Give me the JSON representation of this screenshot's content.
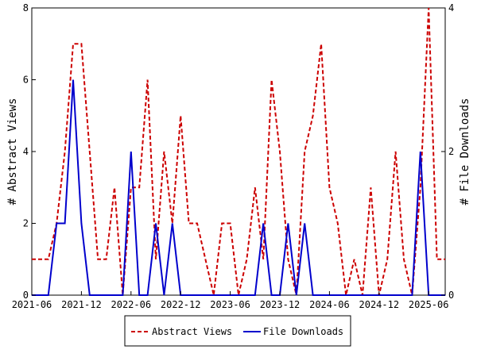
{
  "chart_data": {
    "type": "line",
    "x_tick_labels": [
      "2021-06",
      "2021-12",
      "2022-06",
      "2022-12",
      "2023-06",
      "2023-12",
      "2024-06",
      "2024-12",
      "2025-06"
    ],
    "x_range": [
      "2021-06",
      "2025-08"
    ],
    "ylabel_left": "# Abstract Views",
    "ylabel_right": "# File Downloads",
    "ylim_left": [
      0,
      8
    ],
    "ylim_right": [
      0,
      4
    ],
    "yticks_left": [
      "0",
      "2",
      "4",
      "6",
      "8"
    ],
    "yticks_right": [
      "0",
      "2",
      "4"
    ],
    "grid": false,
    "legend_position": "bottom",
    "series": [
      {
        "name": "Abstract Views",
        "axis": "left",
        "color": "#cc0000",
        "style": "dashed",
        "x": [
          "2021-06",
          "2021-07",
          "2021-08",
          "2021-09",
          "2021-10",
          "2021-11",
          "2021-12",
          "2022-01",
          "2022-02",
          "2022-03",
          "2022-04",
          "2022-05",
          "2022-06",
          "2022-07",
          "2022-08",
          "2022-09",
          "2022-10",
          "2022-11",
          "2022-12",
          "2023-01",
          "2023-02",
          "2023-03",
          "2023-04",
          "2023-05",
          "2023-06",
          "2023-07",
          "2023-08",
          "2023-09",
          "2023-10",
          "2023-11",
          "2023-12",
          "2024-01",
          "2024-02",
          "2024-03",
          "2024-04",
          "2024-05",
          "2024-06",
          "2024-07",
          "2024-08",
          "2024-09",
          "2024-10",
          "2024-11",
          "2024-12",
          "2025-01",
          "2025-02",
          "2025-03",
          "2025-04",
          "2025-05",
          "2025-06",
          "2025-07",
          "2025-08"
        ],
        "values": [
          1,
          1,
          1,
          2,
          4,
          7,
          7,
          4,
          1,
          1,
          3,
          0,
          3,
          3,
          6,
          1,
          4,
          2,
          5,
          2,
          2,
          1,
          0,
          2,
          2,
          0,
          1,
          3,
          1,
          6,
          4,
          1,
          0,
          4,
          5,
          7,
          3,
          2,
          0,
          1,
          0,
          3,
          0,
          1,
          4,
          1,
          0,
          3,
          8,
          1,
          1
        ]
      },
      {
        "name": "File Downloads",
        "axis": "right",
        "color": "#0000cc",
        "style": "solid",
        "x": [
          "2021-06",
          "2021-07",
          "2021-08",
          "2021-09",
          "2021-10",
          "2021-11",
          "2021-12",
          "2022-01",
          "2022-02",
          "2022-03",
          "2022-04",
          "2022-05",
          "2022-06",
          "2022-07",
          "2022-08",
          "2022-09",
          "2022-10",
          "2022-11",
          "2022-12",
          "2023-01",
          "2023-02",
          "2023-03",
          "2023-04",
          "2023-05",
          "2023-06",
          "2023-07",
          "2023-08",
          "2023-09",
          "2023-10",
          "2023-11",
          "2023-12",
          "2024-01",
          "2024-02",
          "2024-03",
          "2024-04",
          "2024-05",
          "2024-06",
          "2024-07",
          "2024-08",
          "2024-09",
          "2024-10",
          "2024-11",
          "2024-12",
          "2025-01",
          "2025-02",
          "2025-03",
          "2025-04",
          "2025-05",
          "2025-06",
          "2025-07",
          "2025-08"
        ],
        "values": [
          0,
          0,
          0,
          1,
          1,
          3,
          1,
          0,
          0,
          0,
          0,
          0,
          2,
          0,
          0,
          1,
          0,
          1,
          0,
          0,
          0,
          0,
          0,
          0,
          0,
          0,
          0,
          0,
          1,
          0,
          0,
          1,
          0,
          1,
          0,
          0,
          0,
          0,
          0,
          0,
          0,
          0,
          0,
          0,
          0,
          0,
          0,
          2,
          0,
          0,
          0
        ]
      }
    ]
  }
}
